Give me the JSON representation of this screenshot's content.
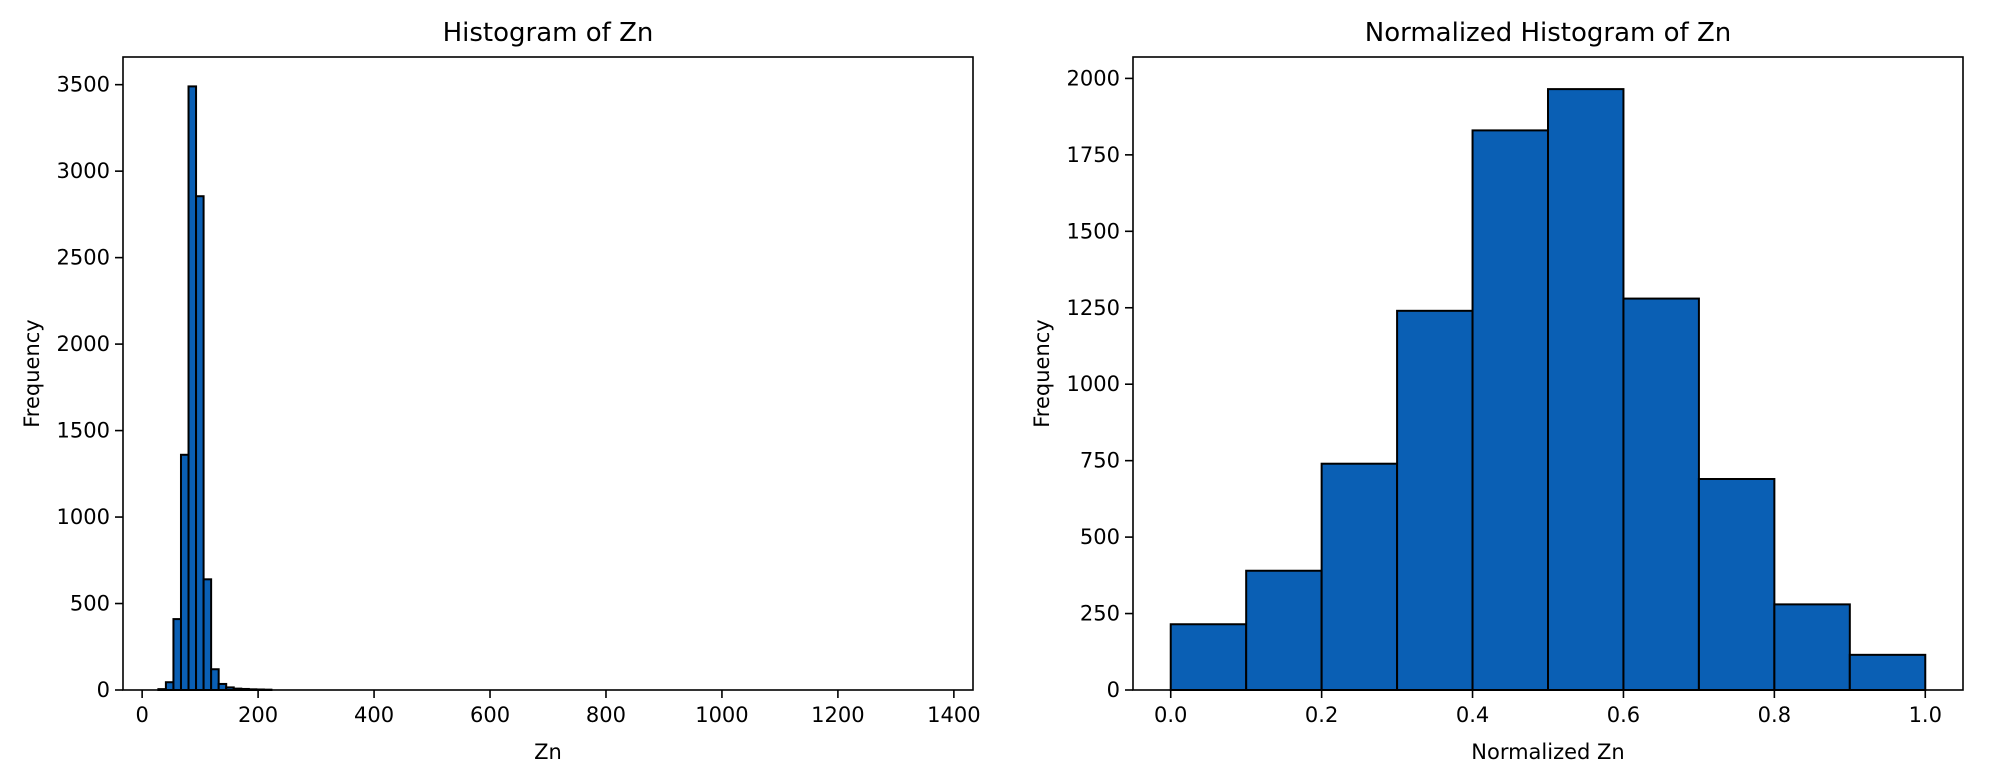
{
  "chart_data": [
    {
      "type": "bar",
      "title": "Histogram of Zn",
      "xlabel": "Zn",
      "ylabel": "Frequency",
      "xlim": [
        -33,
        1433
      ],
      "ylim": [
        0,
        3660
      ],
      "xticks": [
        0,
        200,
        400,
        600,
        800,
        1000,
        1200,
        1400
      ],
      "xtick_labels": [
        "0",
        "200",
        "400",
        "600",
        "800",
        "1000",
        "1200",
        "1400"
      ],
      "yticks": [
        0,
        500,
        1000,
        1500,
        2000,
        2500,
        3000,
        3500
      ],
      "ytick_labels": [
        "0",
        "500",
        "1000",
        "1500",
        "2000",
        "2500",
        "3000",
        "3500"
      ],
      "bin_edges": [
        28,
        41,
        54,
        67,
        80,
        93,
        106,
        119,
        132,
        145,
        158,
        171,
        184,
        197,
        210,
        223
      ],
      "values": [
        5,
        45,
        410,
        1360,
        3490,
        2855,
        640,
        120,
        35,
        15,
        8,
        6,
        4,
        3,
        2
      ],
      "bar_color": "#0a5fb4",
      "edge_color": "#000000"
    },
    {
      "type": "bar",
      "title": "Normalized Histogram of Zn",
      "xlabel": "Normalized Zn",
      "ylabel": "Frequency",
      "xlim": [
        -0.05,
        1.05
      ],
      "ylim": [
        0,
        2070
      ],
      "xticks": [
        0.0,
        0.2,
        0.4,
        0.6,
        0.8,
        1.0
      ],
      "xtick_labels": [
        "0.0",
        "0.2",
        "0.4",
        "0.6",
        "0.8",
        "1.0"
      ],
      "yticks": [
        0,
        250,
        500,
        750,
        1000,
        1250,
        1500,
        1750,
        2000
      ],
      "ytick_labels": [
        "0",
        "250",
        "500",
        "750",
        "1000",
        "1250",
        "1500",
        "1750",
        "2000"
      ],
      "bin_edges": [
        0.0,
        0.1,
        0.2,
        0.3,
        0.4,
        0.5,
        0.6,
        0.7,
        0.8,
        0.9,
        1.0
      ],
      "values": [
        215,
        390,
        740,
        1240,
        1830,
        1965,
        1280,
        690,
        280,
        115
      ],
      "bar_color": "#0a5fb4",
      "edge_color": "#000000"
    }
  ]
}
